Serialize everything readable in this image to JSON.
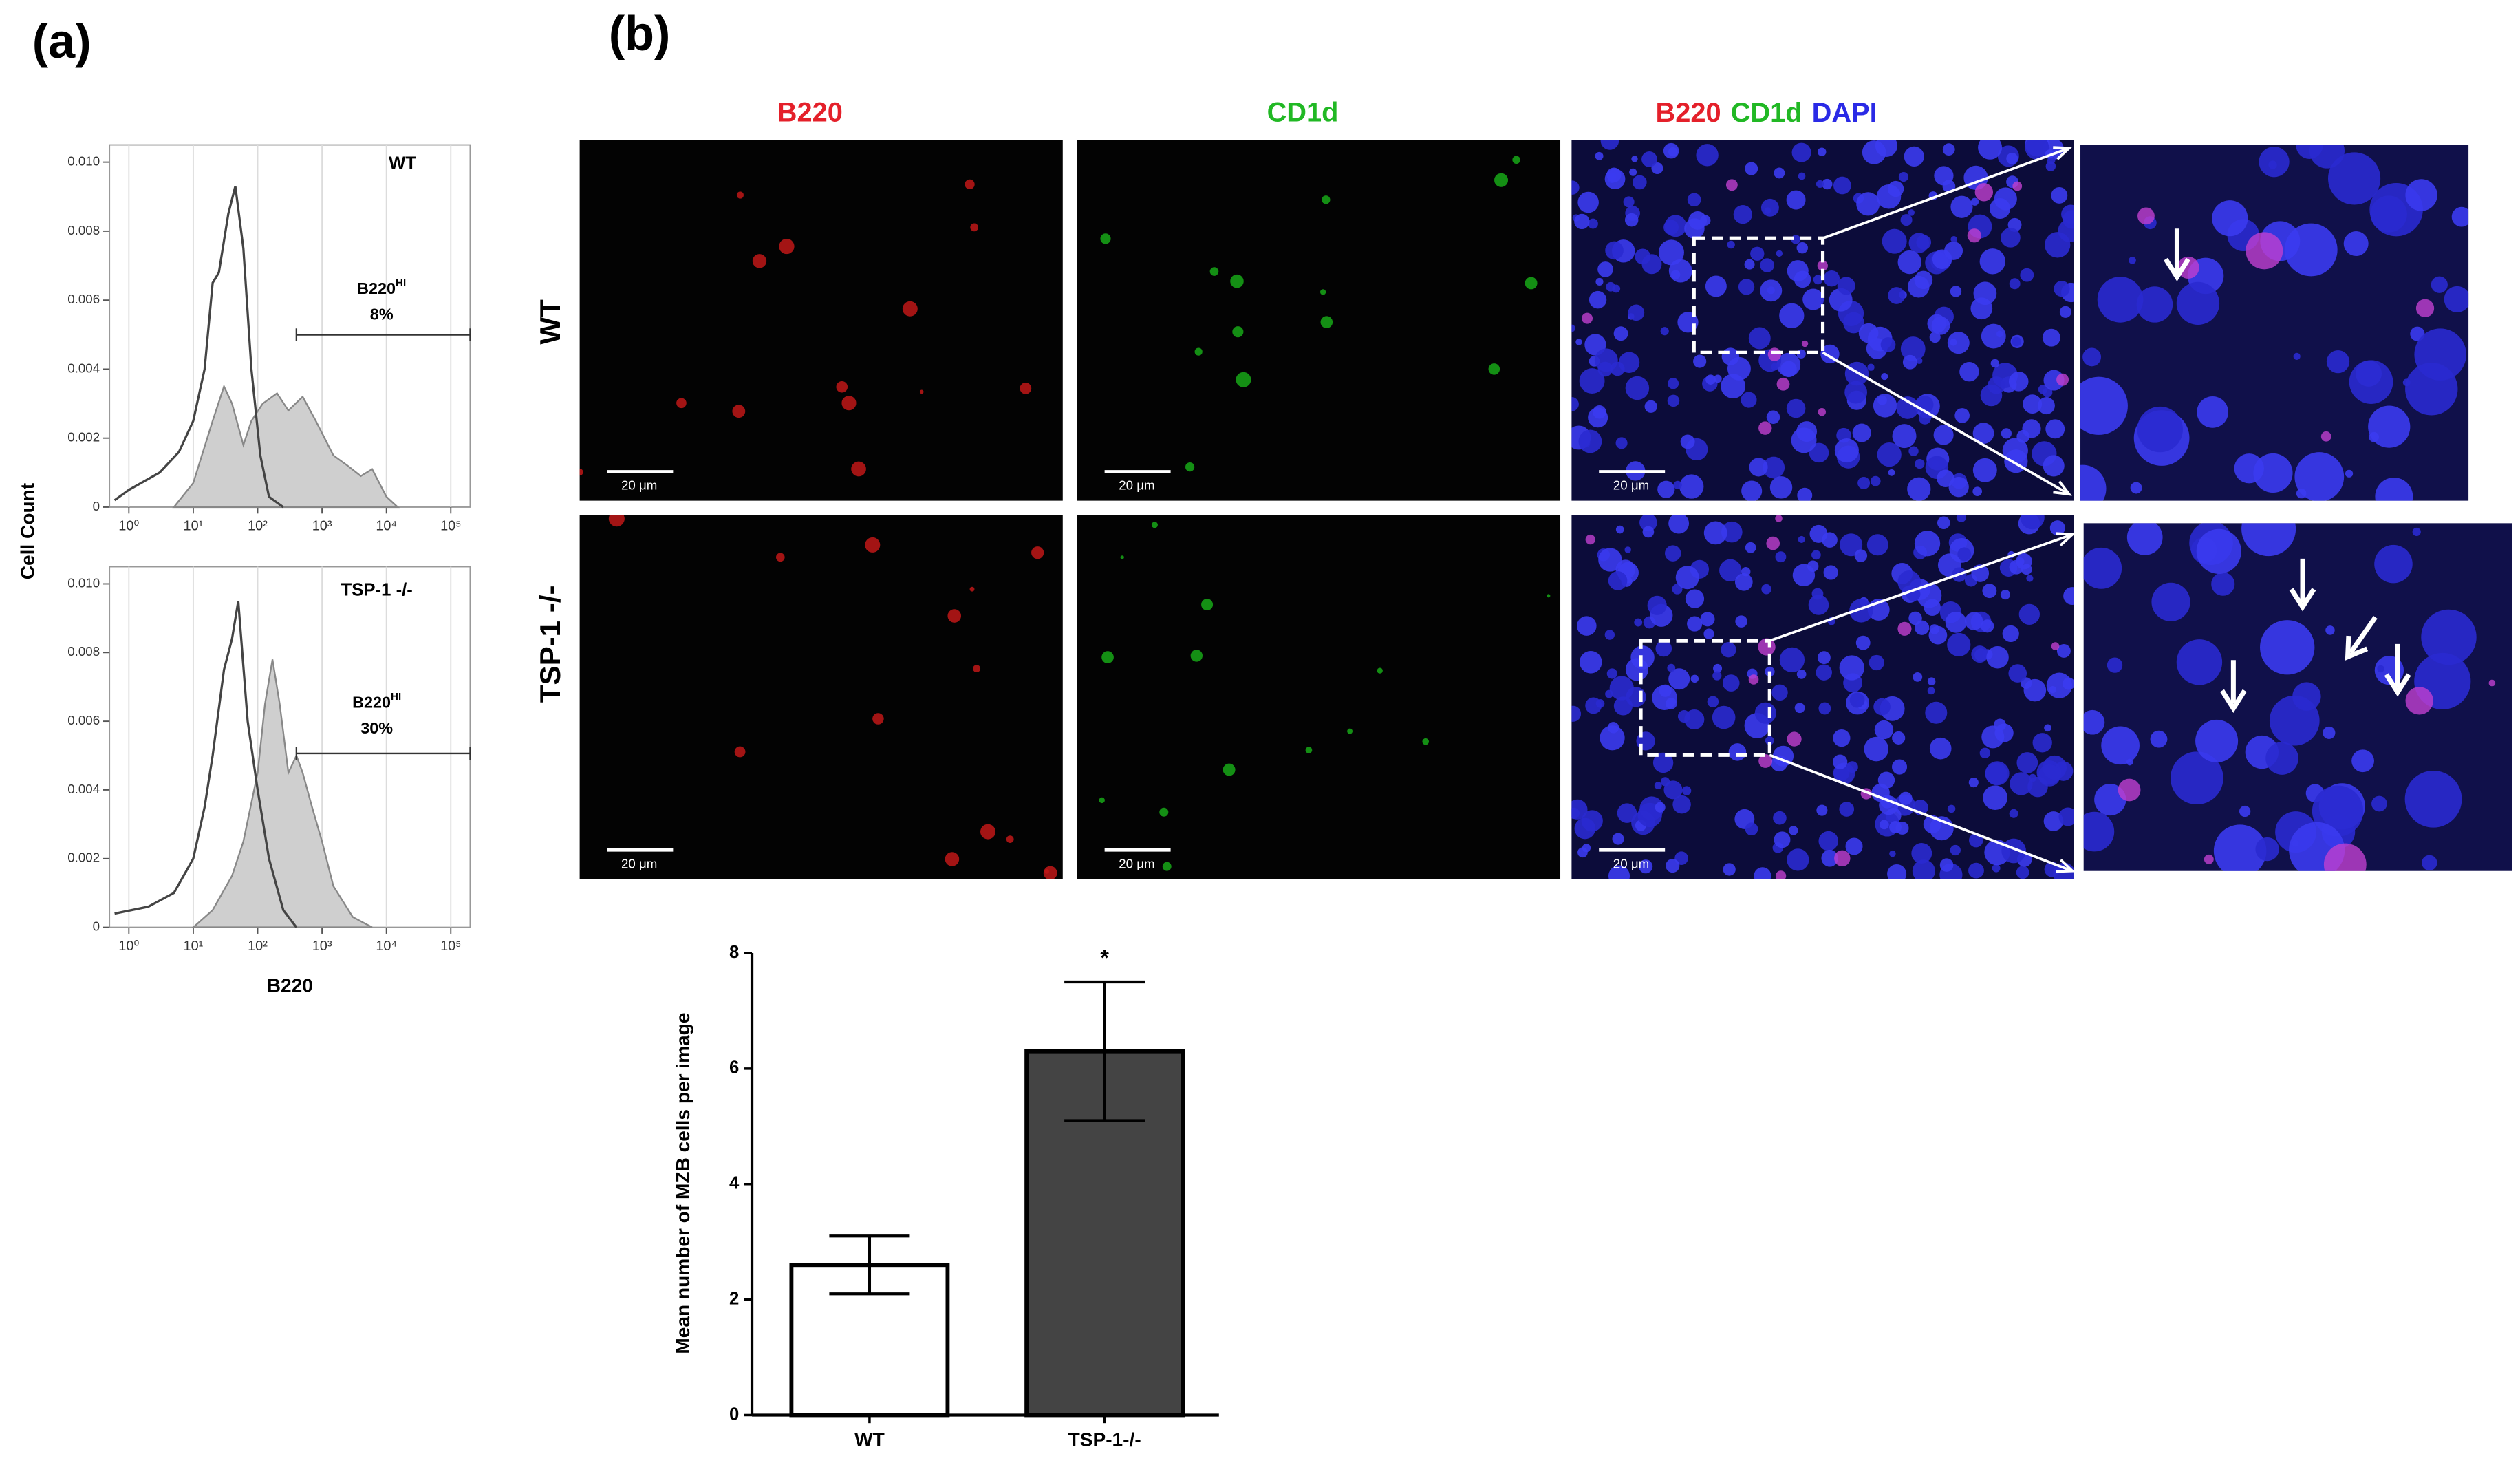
{
  "panel_labels": [
    "(a)",
    "(b)"
  ],
  "micrographs": {
    "column_titles": [
      "B220",
      "CD1d"
    ],
    "merged_title": [
      "B220",
      "CD1d",
      "DAPI"
    ],
    "title_colors": [
      "#e4202a",
      "#21b824",
      "#2a2ae6"
    ],
    "row_labels": [
      "WT",
      "TSP-1 -/-"
    ],
    "scale_bar": "20 μm"
  },
  "chart_data": [
    {
      "type": "line",
      "title": "WT",
      "ylabel": "Cell Count",
      "xscale": "log",
      "xgrid": true,
      "xlim": [
        0.5,
        200000
      ],
      "ylim": [
        0,
        0.0105
      ],
      "xticks": [
        {
          "value": 1,
          "label": "10⁰"
        },
        {
          "value": 10,
          "label": "10¹"
        },
        {
          "value": 100,
          "label": "10²"
        },
        {
          "value": 1000,
          "label": "10³"
        },
        {
          "value": 10000,
          "label": "10⁴"
        },
        {
          "value": 100000,
          "label": "10⁵"
        }
      ],
      "yticks": [
        0,
        0.002,
        0.004,
        0.006,
        0.008,
        {
          "value": 0.01,
          "label": "0.010"
        }
      ],
      "series": [
        {
          "color": "#888888",
          "fill": "#cfcfcf",
          "x": [
            5,
            10,
            20,
            30,
            40,
            60,
            80,
            120,
            200,
            300,
            500,
            800,
            1500,
            2500,
            4000,
            6000,
            10000,
            15000
          ],
          "values": [
            0,
            0.0007,
            0.0025,
            0.0035,
            0.003,
            0.0018,
            0.0025,
            0.003,
            0.0033,
            0.0028,
            0.0032,
            0.0025,
            0.0015,
            0.0012,
            0.0009,
            0.0011,
            0.0003,
            0
          ]
        },
        {
          "color": "#444444",
          "x": [
            0.6,
            1,
            3,
            6,
            10,
            15,
            20,
            25,
            35,
            45,
            60,
            80,
            110,
            150,
            250
          ],
          "values": [
            0.0002,
            0.0005,
            0.001,
            0.0016,
            0.0025,
            0.004,
            0.0065,
            0.0068,
            0.0085,
            0.0093,
            0.0075,
            0.004,
            0.0015,
            0.0003,
            0
          ]
        }
      ],
      "gate_label": "B220",
      "gate_label_sup": "HI",
      "gate_percent": "8%",
      "gate_range": [
        400,
        200000
      ]
    },
    {
      "type": "line",
      "title": "TSP-1 -/-",
      "xlabel": "B220",
      "xscale": "log",
      "xgrid": true,
      "xlim": [
        0.5,
        200000
      ],
      "ylim": [
        0,
        0.0105
      ],
      "xticks": [
        {
          "value": 1,
          "label": "10⁰"
        },
        {
          "value": 10,
          "label": "10¹"
        },
        {
          "value": 100,
          "label": "10²"
        },
        {
          "value": 1000,
          "label": "10³"
        },
        {
          "value": 10000,
          "label": "10⁴"
        },
        {
          "value": 100000,
          "label": "10⁵"
        }
      ],
      "yticks": [
        0,
        0.002,
        0.004,
        0.006,
        0.008,
        {
          "value": 0.01,
          "label": "0.010"
        }
      ],
      "series": [
        {
          "color": "#888888",
          "fill": "#cfcfcf",
          "x": [
            10,
            20,
            40,
            60,
            100,
            130,
            170,
            220,
            300,
            400,
            500,
            700,
            1000,
            1500,
            3000,
            6000
          ],
          "values": [
            0,
            0.0005,
            0.0015,
            0.0025,
            0.0045,
            0.0065,
            0.0078,
            0.0065,
            0.0045,
            0.005,
            0.0045,
            0.0035,
            0.0025,
            0.0012,
            0.0003,
            0
          ]
        },
        {
          "color": "#444444",
          "x": [
            0.6,
            2,
            5,
            10,
            15,
            20,
            30,
            40,
            50,
            70,
            100,
            150,
            250,
            400
          ],
          "values": [
            0.0004,
            0.0006,
            0.001,
            0.002,
            0.0035,
            0.005,
            0.0075,
            0.0084,
            0.0095,
            0.006,
            0.004,
            0.002,
            0.0005,
            0
          ]
        }
      ],
      "gate_label": "B220",
      "gate_label_sup": "HI",
      "gate_percent": "30%",
      "gate_range": [
        400,
        200000
      ]
    },
    {
      "type": "bar",
      "ylabel": "Mean number of MZB cells per image",
      "categories": [
        "WT",
        "TSP-1-/-"
      ],
      "values": [
        2.6,
        6.3
      ],
      "errors": [
        0.5,
        1.2
      ],
      "colors": [
        "#ffffff",
        "#444444"
      ],
      "ylim": [
        0,
        8
      ],
      "yticks": [
        0,
        2,
        4,
        6,
        8
      ],
      "annotation": "*"
    }
  ]
}
